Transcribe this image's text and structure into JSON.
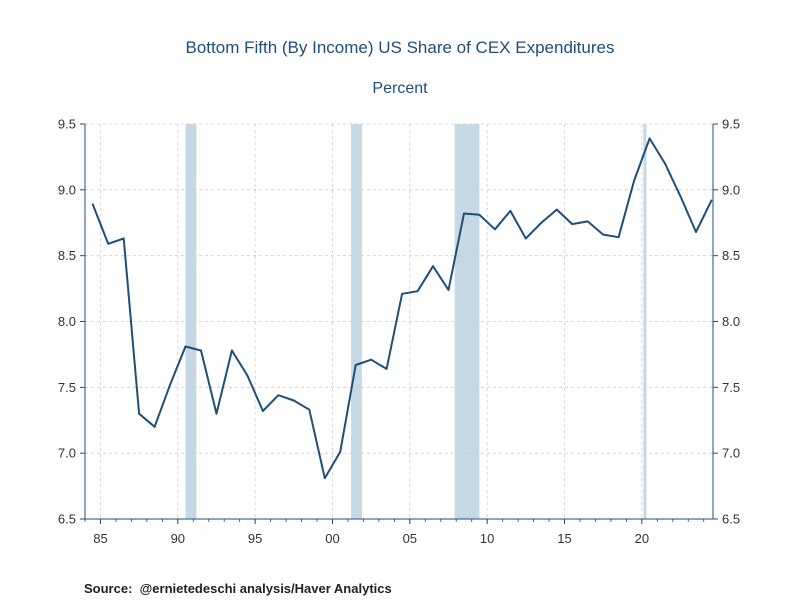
{
  "chart_data": {
    "type": "line",
    "title": "Bottom Fifth (By Income) US Share of CEX Expenditures",
    "subtitle": "Percent",
    "xlabel": "",
    "ylabel": "",
    "ylim": [
      6.5,
      9.5
    ],
    "xlim": [
      1984,
      2024.6
    ],
    "y_ticks": [
      "6.5",
      "7.0",
      "7.5",
      "8.0",
      "8.5",
      "9.0",
      "9.5"
    ],
    "y_tick_values": [
      6.5,
      7.0,
      7.5,
      8.0,
      8.5,
      9.0,
      9.5
    ],
    "x_ticks": [
      "85",
      "90",
      "95",
      "00",
      "05",
      "10",
      "15",
      "20"
    ],
    "x_tick_values": [
      1985,
      1990,
      1995,
      2000,
      2005,
      2010,
      2015,
      2020
    ],
    "grid": true,
    "axes": "left-and-right",
    "recession_shading": [
      {
        "start": 1990.5,
        "end": 1991.2
      },
      {
        "start": 2001.2,
        "end": 2001.9
      },
      {
        "start": 2007.9,
        "end": 2009.5
      },
      {
        "start": 2020.1,
        "end": 2020.3
      }
    ],
    "series": [
      {
        "x": [
          1984.5,
          1985.5,
          1986.5,
          1987.5,
          1988.5,
          1989.5,
          1990.5,
          1991.5,
          1992.5,
          1993.5,
          1994.5,
          1995.5,
          1996.5,
          1997.5,
          1998.5,
          1999.5,
          2000.5,
          2001.5,
          2002.5,
          2003.5,
          2004.5,
          2005.5,
          2006.5,
          2007.5,
          2008.5,
          2009.5,
          2010.5,
          2011.5,
          2012.5,
          2013.5,
          2014.5,
          2015.5,
          2016.5,
          2017.5,
          2018.5,
          2019.5,
          2020.5,
          2021.5,
          2022.5,
          2023.5,
          2024.5
        ],
        "values": [
          8.89,
          8.59,
          8.63,
          7.3,
          7.2,
          7.52,
          7.81,
          7.78,
          7.3,
          7.78,
          7.59,
          7.32,
          7.44,
          7.4,
          7.33,
          6.81,
          7.01,
          7.67,
          7.71,
          7.64,
          8.21,
          8.23,
          8.42,
          8.24,
          8.82,
          8.81,
          8.7,
          8.84,
          8.63,
          8.75,
          8.85,
          8.74,
          8.76,
          8.66,
          8.64,
          9.07,
          9.39,
          9.2,
          8.95,
          8.68,
          8.92
        ],
        "color": "#1f4e79"
      }
    ],
    "colors": {
      "line": "#1f4e79",
      "recession": "#c5d8e4",
      "grid": "#cccccc",
      "axis": "#1f4e79",
      "title": "#1f4e79"
    }
  },
  "source": "Source:  @ernietedeschi analysis/Haver Analytics"
}
